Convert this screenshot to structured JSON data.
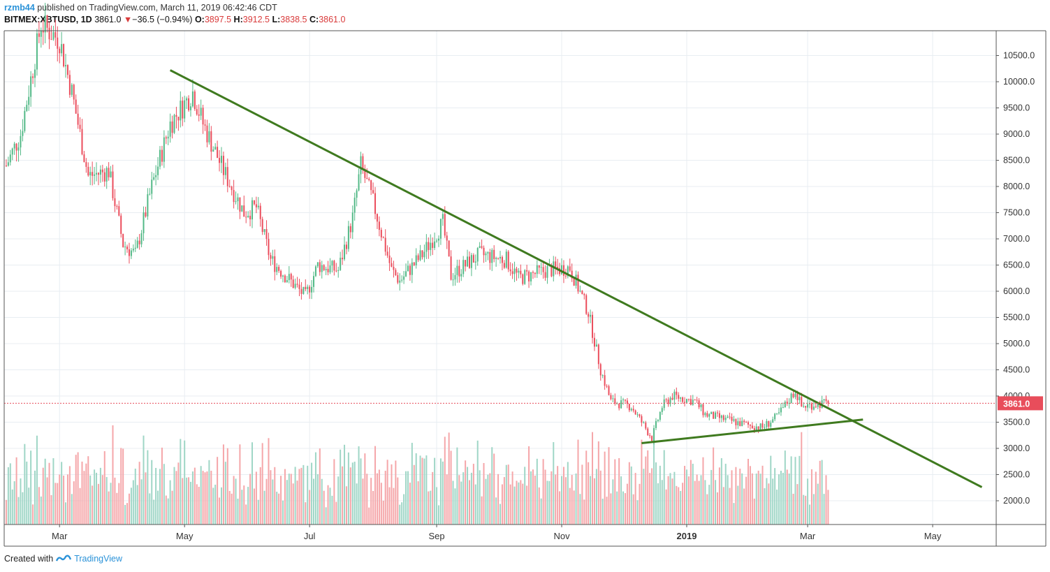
{
  "header": {
    "author": "rzmb44",
    "published_text": "published on TradingView.com, March 11, 2019 06:42:46 CDT",
    "symbol": "BITMEX:XBTUSD, 1D",
    "last": "3861.0",
    "change_arrow": "▼",
    "change": "−36.5 (−0.94%)",
    "open_label": "O:",
    "open": "3897.5",
    "high_label": "H:",
    "high": "3912.5",
    "low_label": "L:",
    "low": "3838.5",
    "close_label": "C:",
    "close": "3861.0"
  },
  "footer": {
    "created_with": "Created with",
    "brand": "TradingView",
    "logo_icon": "tradingview-logo-icon"
  },
  "colors": {
    "up": "#53b987",
    "down": "#eb4d5c",
    "vol_up": "#9fd6c6",
    "vol_down": "#f5a6a9",
    "trend": "#3f7a1f",
    "price_tag": "#e84d5b",
    "grid": "#e8edf2"
  },
  "chart_data": {
    "type": "candlestick",
    "symbol": "BITMEX:XBTUSD",
    "interval": "1D",
    "x_ticks": [
      "Mar",
      "May",
      "Jul",
      "Sep",
      "Nov",
      "2019",
      "Mar",
      "May"
    ],
    "y_ticks": [
      "2000.0",
      "2500.0",
      "3000.0",
      "3500.0",
      "4000.0",
      "4500.0",
      "5000.0",
      "5500.0",
      "6000.0",
      "6500.0",
      "7000.0",
      "7500.0",
      "8000.0",
      "8500.0",
      "9000.0",
      "9500.0",
      "10000.0",
      "10500.0"
    ],
    "ylim": [
      1600,
      11000
    ],
    "xlim": [
      "2018-02-02",
      "2019-06-01"
    ],
    "last_price": 3861.0,
    "close_path": [
      {
        "date": "2018-02-03",
        "close": 8400
      },
      {
        "date": "2018-02-10",
        "close": 9000
      },
      {
        "date": "2018-02-20",
        "close": 11100
      },
      {
        "date": "2018-03-01",
        "close": 10800
      },
      {
        "date": "2018-03-07",
        "close": 9800
      },
      {
        "date": "2018-03-15",
        "close": 8200
      },
      {
        "date": "2018-03-25",
        "close": 8300
      },
      {
        "date": "2018-04-01",
        "close": 6900
      },
      {
        "date": "2018-04-07",
        "close": 6700
      },
      {
        "date": "2018-04-15",
        "close": 8000
      },
      {
        "date": "2018-04-24",
        "close": 9200
      },
      {
        "date": "2018-05-05",
        "close": 9800
      },
      {
        "date": "2018-05-10",
        "close": 9200
      },
      {
        "date": "2018-05-20",
        "close": 8300
      },
      {
        "date": "2018-05-30",
        "close": 7500
      },
      {
        "date": "2018-06-05",
        "close": 7600
      },
      {
        "date": "2018-06-12",
        "close": 6600
      },
      {
        "date": "2018-06-24",
        "close": 6100
      },
      {
        "date": "2018-06-29",
        "close": 5900
      },
      {
        "date": "2018-07-05",
        "close": 6500
      },
      {
        "date": "2018-07-15",
        "close": 6400
      },
      {
        "date": "2018-07-22",
        "close": 7400
      },
      {
        "date": "2018-07-26",
        "close": 8400
      },
      {
        "date": "2018-08-01",
        "close": 7700
      },
      {
        "date": "2018-08-10",
        "close": 6400
      },
      {
        "date": "2018-08-14",
        "close": 6200
      },
      {
        "date": "2018-08-25",
        "close": 6700
      },
      {
        "date": "2018-09-04",
        "close": 7300
      },
      {
        "date": "2018-09-08",
        "close": 6300
      },
      {
        "date": "2018-09-15",
        "close": 6500
      },
      {
        "date": "2018-09-22",
        "close": 6700
      },
      {
        "date": "2018-10-05",
        "close": 6600
      },
      {
        "date": "2018-10-11",
        "close": 6250
      },
      {
        "date": "2018-10-25",
        "close": 6400
      },
      {
        "date": "2018-11-05",
        "close": 6450
      },
      {
        "date": "2018-11-14",
        "close": 5600
      },
      {
        "date": "2018-11-20",
        "close": 4500
      },
      {
        "date": "2018-11-25",
        "close": 3900
      },
      {
        "date": "2018-12-05",
        "close": 3800
      },
      {
        "date": "2018-12-10",
        "close": 3500
      },
      {
        "date": "2018-12-15",
        "close": 3200
      },
      {
        "date": "2018-12-20",
        "close": 3800
      },
      {
        "date": "2018-12-25",
        "close": 4000
      },
      {
        "date": "2019-01-05",
        "close": 3900
      },
      {
        "date": "2019-01-10",
        "close": 3650
      },
      {
        "date": "2019-01-20",
        "close": 3550
      },
      {
        "date": "2019-01-30",
        "close": 3450
      },
      {
        "date": "2019-02-07",
        "close": 3400
      },
      {
        "date": "2019-02-14",
        "close": 3600
      },
      {
        "date": "2019-02-23",
        "close": 4100
      },
      {
        "date": "2019-02-26",
        "close": 3800
      },
      {
        "date": "2019-03-05",
        "close": 3850
      },
      {
        "date": "2019-03-11",
        "close": 3861
      }
    ],
    "trendlines": [
      {
        "name": "",
        "from": {
          "date": "2018-04-24",
          "price": 10220
        },
        "to": {
          "date": "2019-05-25",
          "price": 2260
        }
      },
      {
        "name": "",
        "from": {
          "date": "2018-12-10",
          "price": 3100
        },
        "to": {
          "date": "2019-03-28",
          "price": 3550
        }
      }
    ],
    "grid": true,
    "volume": true
  }
}
